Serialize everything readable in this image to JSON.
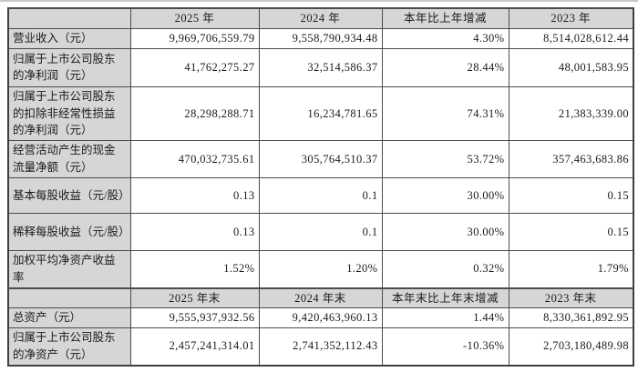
{
  "colors": {
    "header_bg": "#d6d6d6",
    "label_bg": "#d6d6d6",
    "cell_bg": "#ffffff",
    "border": "#4c4c4c",
    "text": "#1b1b1b"
  },
  "table": {
    "sections": [
      {
        "header": {
          "corner": "",
          "cols": [
            "2025 年",
            "2024 年",
            "本年比上年增减",
            "2023 年"
          ]
        },
        "rows": [
          {
            "label": "营业收入（元）",
            "values": [
              "9,969,706,559.79",
              "9,558,790,934.48",
              "4.30%",
              "8,514,028,612.44"
            ]
          },
          {
            "label": "归属于上市公司股东的净利润（元）",
            "values": [
              "41,762,275.27",
              "32,514,586.37",
              "28.44%",
              "48,001,583.95"
            ]
          },
          {
            "label": "归属于上市公司股东的扣除非经常性损益的净利润（元）",
            "values": [
              "28,298,288.71",
              "16,234,781.65",
              "74.31%",
              "21,383,339.00"
            ]
          },
          {
            "label": "经营活动产生的现金流量净额（元）",
            "values": [
              "470,032,735.61",
              "305,764,510.37",
              "53.72%",
              "357,463,683.86"
            ]
          },
          {
            "label": "基本每股收益（元/股）",
            "values": [
              "0.13",
              "0.1",
              "30.00%",
              "0.15"
            ]
          },
          {
            "label": "稀释每股收益（元/股）",
            "values": [
              "0.13",
              "0.1",
              "30.00%",
              "0.15"
            ]
          },
          {
            "label": "加权平均净资产收益率",
            "values": [
              "1.52%",
              "1.20%",
              "0.32%",
              "1.79%"
            ]
          }
        ]
      },
      {
        "header": {
          "corner": "",
          "cols": [
            "2025 年末",
            "2024 年末",
            "本年末比上年末增减",
            "2023 年末"
          ]
        },
        "rows": [
          {
            "label": "总资产（元）",
            "values": [
              "9,555,937,932.56",
              "9,420,463,960.13",
              "1.44%",
              "8,330,361,892.95"
            ]
          },
          {
            "label": "归属于上市公司股东的净资产（元）",
            "values": [
              "2,457,241,314.01",
              "2,741,352,112.43",
              "-10.36%",
              "2,703,180,489.98"
            ]
          }
        ]
      }
    ]
  }
}
